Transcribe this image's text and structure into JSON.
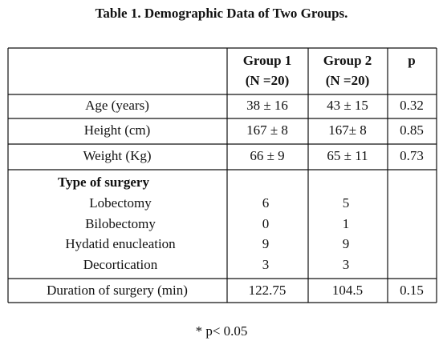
{
  "title": "Table 1. Demographic Data of Two Groups.",
  "table": {
    "header": [
      {
        "lines": [
          "Group 1",
          "(N =20)"
        ]
      },
      {
        "lines": [
          "Group 2",
          "(N =20)"
        ]
      },
      {
        "lines": [
          "p"
        ]
      }
    ],
    "rows": [
      [
        "Age (years)",
        "38 ± 16",
        "43 ± 15",
        "0.32"
      ],
      [
        "Height (cm)",
        "167 ± 8",
        "167± 8",
        "0.85"
      ],
      [
        "Weight (Kg)",
        "66 ± 9",
        "65 ± 11",
        "0.73"
      ]
    ],
    "surgery": {
      "title": "Type of surgery",
      "items": [
        [
          "Lobectomy",
          "6",
          "5"
        ],
        [
          "Bilobectomy",
          "0",
          "1"
        ],
        [
          "Hydatid enucleation",
          "9",
          "9"
        ],
        [
          "Decortication",
          "3",
          "3"
        ]
      ]
    },
    "duration": [
      "Duration of surgery (min)",
      "122.75",
      "104.5",
      "0.15"
    ]
  },
  "footnote": "* p< 0.05"
}
